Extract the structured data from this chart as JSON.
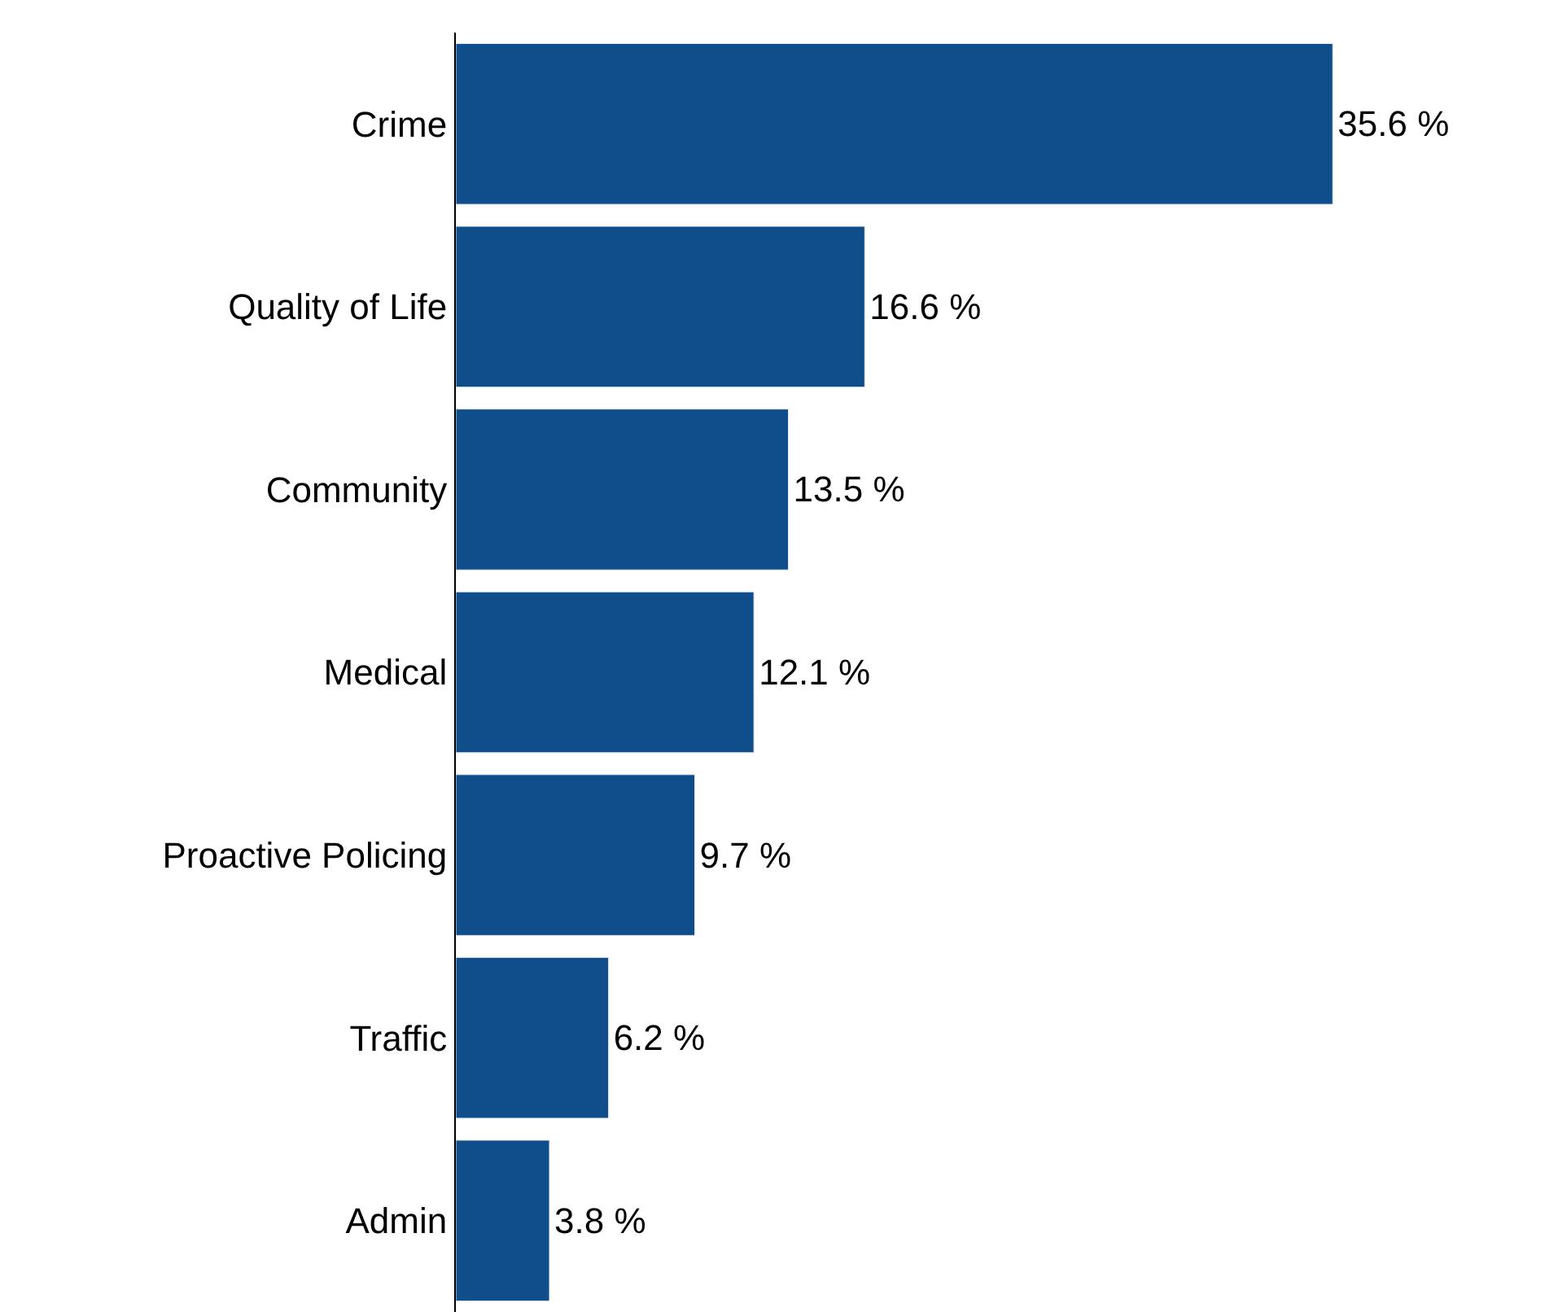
{
  "chart_data": {
    "type": "bar",
    "orientation": "horizontal",
    "categories": [
      "Crime",
      "Quality of Life",
      "Community",
      "Medical",
      "Proactive Policing",
      "Traffic",
      "Admin"
    ],
    "values": [
      35.6,
      16.6,
      13.5,
      12.1,
      9.7,
      6.2,
      3.8
    ],
    "value_labels": [
      "35.6 %",
      "16.6 %",
      "13.5 %",
      "12.1 %",
      "9.7 %",
      "6.2 %",
      "3.8 %"
    ],
    "color": "#104e8b",
    "tick_labels": "y",
    "legend": false
  }
}
